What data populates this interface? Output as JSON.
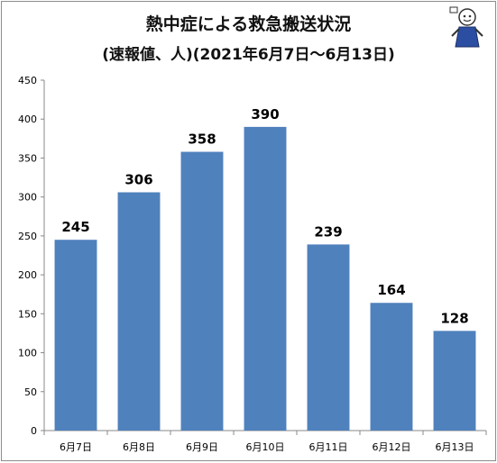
{
  "chart_data": {
    "type": "bar",
    "title": "熱中症による救急搬送状況",
    "subtitle": "(速報値、人)(2021年6月7日〜6月13日)",
    "categories": [
      "6月7日",
      "6月8日",
      "6月9日",
      "6月10日",
      "6月11日",
      "6月12日",
      "6月13日"
    ],
    "values": [
      245,
      306,
      358,
      390,
      239,
      164,
      128
    ],
    "ylim": [
      0,
      450
    ],
    "yticks": [
      "0",
      "50",
      "100",
      "150",
      "200",
      "250",
      "300",
      "350",
      "400",
      "450"
    ],
    "grid": false,
    "legend": "none",
    "bar_color": "#4f81bd"
  }
}
